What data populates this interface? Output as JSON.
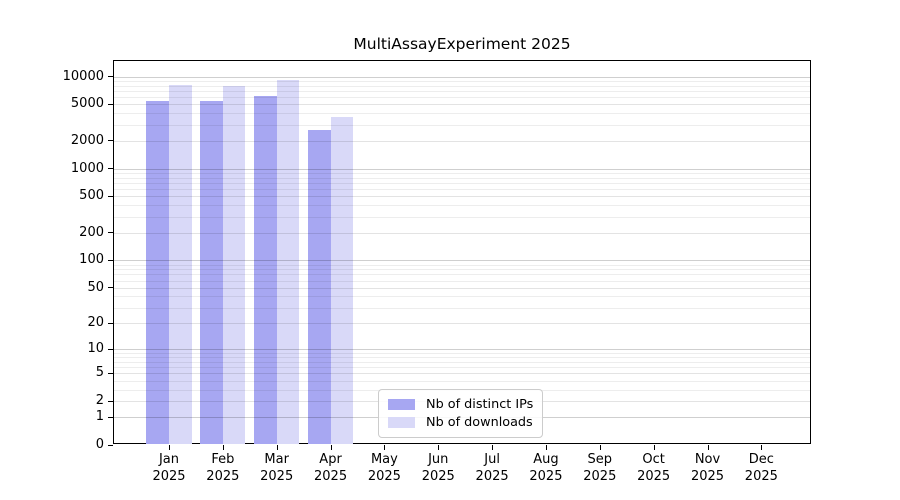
{
  "chart_data": {
    "type": "bar",
    "title": "MultiAssayExperiment 2025",
    "year": "2025",
    "months": [
      "Jan",
      "Feb",
      "Mar",
      "Apr",
      "May",
      "Jun",
      "Jul",
      "Aug",
      "Sep",
      "Oct",
      "Nov",
      "Dec"
    ],
    "categories": [
      "Jan 2025",
      "Feb 2025",
      "Mar 2025",
      "Apr 2025",
      "May 2025",
      "Jun 2025",
      "Jul 2025",
      "Aug 2025",
      "Sep 2025",
      "Oct 2025",
      "Nov 2025",
      "Dec 2025"
    ],
    "series": [
      {
        "name": "Nb of distinct IPs",
        "color": "#a7a7f2",
        "values": [
          5400,
          5450,
          6150,
          2640,
          0,
          0,
          0,
          0,
          0,
          0,
          0,
          0
        ]
      },
      {
        "name": "Nb of downloads",
        "color": "#d9d9f8",
        "values": [
          8100,
          8000,
          9250,
          3680,
          0,
          0,
          0,
          0,
          0,
          0,
          0,
          0
        ]
      }
    ],
    "y_scale": "log10(1+x)",
    "ylim": [
      0,
      10000
    ],
    "y_ticks": [
      10000,
      5000,
      2000,
      1000,
      500,
      200,
      100,
      50,
      20,
      10,
      5,
      2,
      1,
      0
    ],
    "y_minor_ticks": [
      3,
      4,
      6,
      7,
      8,
      9,
      30,
      40,
      60,
      70,
      80,
      90,
      300,
      400,
      600,
      700,
      800,
      900,
      3000,
      4000,
      6000,
      7000,
      8000,
      9000
    ],
    "grid": true,
    "legend_position": "lower-center",
    "background_color": "#ffffff",
    "axis_color": "#000000"
  }
}
